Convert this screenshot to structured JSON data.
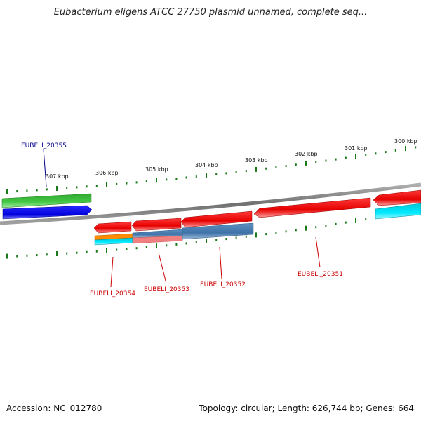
{
  "title": "Eubacterium eligens ATCC 27750 plasmid unnamed, complete seq...",
  "footer": {
    "accession": "Accession: NC_012780",
    "summary": "Topology: circular; Length: 626,744 bp; Genes: 664"
  },
  "ruler_labels": [
    "307 kbp",
    "306 kbp",
    "305 kbp",
    "304 kbp",
    "303 kbp",
    "302 kbp",
    "301 kbp",
    "300 kbp"
  ],
  "gene_labels": [
    {
      "name": "EUBELI_20355",
      "color": "#00008b"
    },
    {
      "name": "EUBELI_20354",
      "color": "#cc0000"
    },
    {
      "name": "EUBELI_20353",
      "color": "#cc0000"
    },
    {
      "name": "EUBELI_20352",
      "color": "#cc0000"
    },
    {
      "name": "EUBELI_20351",
      "color": "#cc0000"
    }
  ],
  "colors": {
    "backbone": "#808080",
    "tick": "#1a7a1a",
    "forward_gene": "#0000ee",
    "reverse_gene": "#ee0000",
    "green_feature": "#33bb33",
    "cyan_feature": "#00d8e8",
    "steel_feature": "#4a7fb0",
    "orange_feature": "#ff8c00"
  }
}
